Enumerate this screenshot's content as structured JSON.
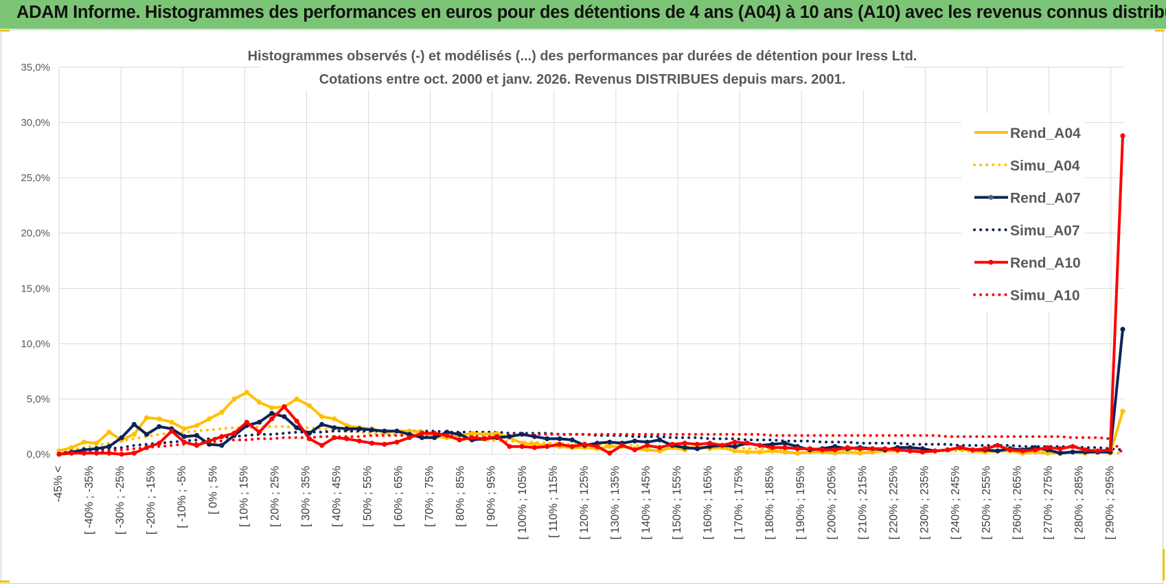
{
  "header": {
    "title": "ADAM Informe. Histogrammes des performances en euros pour des détentions de 4 ans (A04) à 10 ans (A10) avec les revenus connus distribués"
  },
  "colors": {
    "banner": "#7cc576",
    "A04": "#FFC000",
    "A07": "#0D2357",
    "A10": "#FF0000",
    "grid": "#D9D9D9"
  },
  "chart_data": {
    "type": "line",
    "title_line1": "Histogrammes observés (-) et modélisés (...) des performances par durées de détention pour Iress Ltd.",
    "title_line2": "Cotations entre oct. 2000 et janv. 2026. Revenus DISTRIBUES depuis mars. 2001.",
    "ylim": [
      0,
      35
    ],
    "y_ticks": [
      "0,0%",
      "5,0%",
      "10,0%",
      "15,0%",
      "20,0%",
      "25,0%",
      "30,0%",
      "35,0%"
    ],
    "y_tick_values": [
      0,
      5,
      10,
      15,
      20,
      25,
      30,
      35
    ],
    "x_labels": [
      "-45% <",
      "[ -40% ; -35%",
      "[ -30% ; -25%",
      "[ -20% ; -15%",
      "[ -10% ; -5%",
      "[ 0% ; 5%",
      "[ 10% ; 15%",
      "[ 20% ; 25%",
      "[ 30% ; 35%",
      "[ 40% ; 45%",
      "[ 50% ; 55%",
      "[ 60% ; 65%",
      "[ 70% ; 75%",
      "[ 80% ; 85%",
      "[ 90% ; 95%",
      "[ 100% ; 105%",
      "[ 110% ; 115%",
      "[ 120% ; 125%",
      "[ 130% ; 135%",
      "[ 140% ; 145%",
      "[ 150% ; 155%",
      "[ 160% ; 165%",
      "[ 170% ; 175%",
      "[ 180% ; 185%",
      "[ 190% ; 195%",
      "[ 200% ; 205%",
      "[ 210% ; 215%",
      "[ 220% ; 225%",
      "[ 230% ; 235%",
      "[ 240% ; 245%",
      "[ 250% ; 255%",
      "[ 260% ; 265%",
      "[ 270% ; 275%",
      "[ 280% ; 285%",
      "[ 290% ; 295%"
    ],
    "series": [
      {
        "name": "Rend_A04",
        "style": "solid",
        "color": "#FFC000",
        "values": [
          0.3,
          0.6,
          1.1,
          1.0,
          2.0,
          1.3,
          1.8,
          3.3,
          3.2,
          2.9,
          2.3,
          2.6,
          3.2,
          3.8,
          5.0,
          5.6,
          4.7,
          4.2,
          4.3,
          5.0,
          4.4,
          3.4,
          3.2,
          2.6,
          2.4,
          2.3,
          2.0,
          2.1,
          2.1,
          2.0,
          1.6,
          1.5,
          1.7,
          1.9,
          1.8,
          1.9,
          1.5,
          1.0,
          0.9,
          0.8,
          0.7,
          0.6,
          0.6,
          0.5,
          0.7,
          0.7,
          0.5,
          0.4,
          0.3,
          0.6,
          0.4,
          0.7,
          0.5,
          0.6,
          0.3,
          0.2,
          0.2,
          0.3,
          0.2,
          0.1,
          0.2,
          0.2,
          0.1,
          0.2,
          0.1,
          0.2,
          0.3,
          0.3,
          0.4,
          0.5,
          0.3,
          0.4,
          0.5,
          0.3,
          0.2,
          0.3,
          0.3,
          0.1,
          0.2,
          0.1,
          0.1,
          0.2,
          0.1,
          0.3,
          0.1,
          3.9
        ]
      },
      {
        "name": "Simu_A04",
        "style": "dotted",
        "color": "#FFC000",
        "values": [
          0.2,
          0.4,
          0.6,
          0.8,
          1.0,
          1.2,
          1.4,
          1.6,
          1.8,
          1.9,
          2.0,
          2.1,
          2.2,
          2.3,
          2.4,
          2.4,
          2.5,
          2.5,
          2.5,
          2.4,
          2.4,
          2.3,
          2.2,
          2.1,
          2.0,
          1.9,
          1.8,
          1.8,
          1.7,
          1.6,
          1.5,
          1.5,
          1.4,
          1.3,
          1.3,
          1.2,
          1.2,
          1.1,
          1.1,
          1.0,
          1.0,
          0.9,
          0.9,
          0.9,
          0.8,
          0.8,
          0.8,
          0.7,
          0.7,
          0.7,
          0.7,
          0.6,
          0.6,
          0.6,
          0.6,
          0.5,
          0.5,
          0.5,
          0.5,
          0.5,
          0.5,
          0.4,
          0.4,
          0.4,
          0.4,
          0.4,
          0.4,
          0.4,
          0.3,
          0.3,
          0.3,
          0.3,
          0.3,
          0.3,
          0.3,
          0.3,
          0.3,
          0.3,
          0.3,
          0.3,
          0.2,
          0.2,
          0.2,
          0.2,
          0.2,
          0.1
        ]
      },
      {
        "name": "Rend_A07",
        "style": "solid",
        "color": "#0D2357",
        "values": [
          0.0,
          0.2,
          0.4,
          0.5,
          0.7,
          1.5,
          2.7,
          1.8,
          2.5,
          2.3,
          1.6,
          1.7,
          0.9,
          0.8,
          1.7,
          2.6,
          2.9,
          3.7,
          3.4,
          2.4,
          1.9,
          2.7,
          2.4,
          2.3,
          2.3,
          2.2,
          2.1,
          2.1,
          1.8,
          1.5,
          1.5,
          2.0,
          1.8,
          1.3,
          1.4,
          1.5,
          1.6,
          1.8,
          1.6,
          1.4,
          1.4,
          1.3,
          0.8,
          1.0,
          1.1,
          1.0,
          1.2,
          1.1,
          1.3,
          0.8,
          0.6,
          0.5,
          0.7,
          0.8,
          0.7,
          1.0,
          0.8,
          0.9,
          1.0,
          0.7,
          0.4,
          0.5,
          0.7,
          0.5,
          0.6,
          0.5,
          0.4,
          0.6,
          0.6,
          0.5,
          0.3,
          0.4,
          0.6,
          0.4,
          0.4,
          0.3,
          0.5,
          0.4,
          0.6,
          0.4,
          0.1,
          0.2,
          0.2,
          0.2,
          0.2,
          11.3
        ]
      },
      {
        "name": "Simu_A07",
        "style": "dotted",
        "color": "#0D2357",
        "values": [
          0.1,
          0.2,
          0.3,
          0.4,
          0.5,
          0.6,
          0.8,
          0.9,
          1.0,
          1.1,
          1.2,
          1.3,
          1.4,
          1.5,
          1.6,
          1.7,
          1.8,
          1.8,
          1.9,
          2.0,
          2.0,
          2.0,
          2.1,
          2.1,
          2.1,
          2.1,
          2.1,
          2.1,
          2.1,
          2.1,
          2.1,
          2.0,
          2.0,
          2.0,
          2.0,
          2.0,
          1.9,
          1.9,
          1.9,
          1.9,
          1.8,
          1.8,
          1.8,
          1.7,
          1.7,
          1.7,
          1.6,
          1.6,
          1.6,
          1.5,
          1.5,
          1.5,
          1.4,
          1.4,
          1.4,
          1.3,
          1.3,
          1.3,
          1.2,
          1.2,
          1.2,
          1.1,
          1.1,
          1.1,
          1.0,
          1.0,
          1.0,
          1.0,
          0.9,
          0.9,
          0.9,
          0.9,
          0.8,
          0.8,
          0.8,
          0.8,
          0.8,
          0.7,
          0.7,
          0.7,
          0.7,
          0.7,
          0.6,
          0.6,
          0.5,
          0.4
        ]
      },
      {
        "name": "Rend_A10",
        "style": "solid",
        "color": "#FF0000",
        "values": [
          0.0,
          0.1,
          0.1,
          0.1,
          0.1,
          0.0,
          0.1,
          0.6,
          1.0,
          2.1,
          1.1,
          0.8,
          1.2,
          1.6,
          1.9,
          2.9,
          2.0,
          3.2,
          4.3,
          3.0,
          1.4,
          0.8,
          1.5,
          1.4,
          1.2,
          1.0,
          0.9,
          1.1,
          1.5,
          1.9,
          1.9,
          1.7,
          1.3,
          1.5,
          1.4,
          1.6,
          0.7,
          0.7,
          0.6,
          0.7,
          0.9,
          0.7,
          0.9,
          0.7,
          0.1,
          0.8,
          0.4,
          0.8,
          0.6,
          0.9,
          1.0,
          0.9,
          1.0,
          0.8,
          1.1,
          1.0,
          0.8,
          0.6,
          0.6,
          0.5,
          0.5,
          0.4,
          0.4,
          0.6,
          0.5,
          0.5,
          0.5,
          0.4,
          0.3,
          0.2,
          0.3,
          0.4,
          0.6,
          0.4,
          0.5,
          0.8,
          0.4,
          0.3,
          0.4,
          0.6,
          0.5,
          0.7,
          0.4,
          0.3,
          0.4,
          28.8
        ]
      },
      {
        "name": "Simu_A10",
        "style": "dotted",
        "color": "#FF0000",
        "values": [
          0.0,
          0.1,
          0.2,
          0.2,
          0.3,
          0.4,
          0.5,
          0.6,
          0.7,
          0.8,
          0.9,
          1.0,
          1.1,
          1.2,
          1.3,
          1.3,
          1.4,
          1.4,
          1.5,
          1.5,
          1.5,
          1.6,
          1.6,
          1.6,
          1.6,
          1.7,
          1.7,
          1.7,
          1.7,
          1.7,
          1.7,
          1.7,
          1.7,
          1.7,
          1.7,
          1.7,
          1.8,
          1.8,
          1.8,
          1.8,
          1.8,
          1.8,
          1.8,
          1.8,
          1.8,
          1.8,
          1.8,
          1.8,
          1.8,
          1.8,
          1.8,
          1.8,
          1.8,
          1.8,
          1.8,
          1.8,
          1.8,
          1.7,
          1.7,
          1.7,
          1.7,
          1.7,
          1.7,
          1.7,
          1.7,
          1.7,
          1.7,
          1.7,
          1.7,
          1.7,
          1.7,
          1.6,
          1.6,
          1.6,
          1.6,
          1.6,
          1.6,
          1.6,
          1.6,
          1.6,
          1.6,
          1.5,
          1.5,
          1.5,
          1.4,
          0.1
        ]
      }
    ],
    "legend_position": "right"
  }
}
